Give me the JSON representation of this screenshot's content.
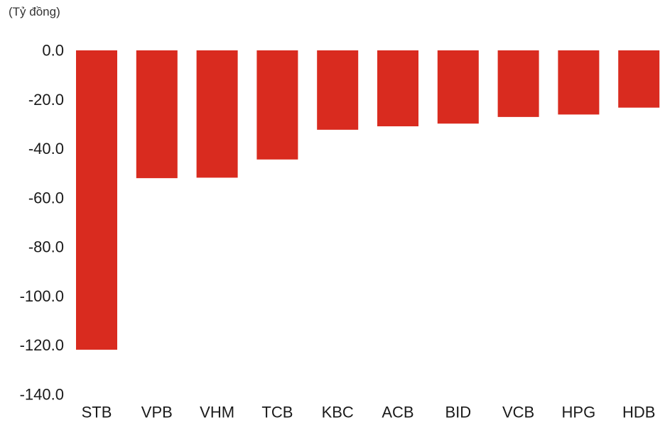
{
  "chart_data": {
    "type": "bar",
    "title": "",
    "unit_label": "(Tỷ đồng)",
    "xlabel": "",
    "ylabel": "",
    "categories": [
      "STB",
      "VPB",
      "VHM",
      "TCB",
      "KBC",
      "ACB",
      "BID",
      "VCB",
      "HPG",
      "HDB"
    ],
    "values": [
      -121.8,
      -52.0,
      -51.8,
      -44.4,
      -32.3,
      -30.9,
      -29.8,
      -27.1,
      -26.1,
      -23.3
    ],
    "y_ticks": [
      "0.0",
      "-20.0",
      "-40.0",
      "-60.0",
      "-80.0",
      "-100.0",
      "-120.0",
      "-140.0"
    ],
    "ylim": [
      -140,
      0
    ],
    "grid": false,
    "legend": "none",
    "bar_color": "#d92b1f"
  }
}
